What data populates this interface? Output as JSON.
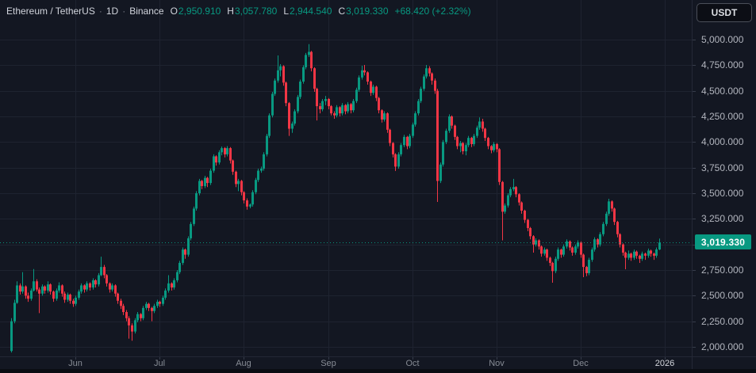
{
  "header": {
    "symbol_title": "Ethereum / TetherUS",
    "separator": "·",
    "interval": "1D",
    "exchange": "Binance",
    "ohlc": [
      {
        "label": "O",
        "value": "2,950.910"
      },
      {
        "label": "H",
        "value": "3,057.780"
      },
      {
        "label": "L",
        "value": "2,944.540"
      },
      {
        "label": "C",
        "value": "3,019.330"
      }
    ],
    "change": "+68.420 (+2.32%)"
  },
  "toolbar": {
    "currency_button": "USDT"
  },
  "colors": {
    "background": "#131722",
    "up": "#089981",
    "down": "#f23645",
    "grid": "#1e2330",
    "axis_text": "#b2b5be",
    "title_text": "#d1d4dc",
    "muted_text": "#787b86",
    "last_price_label_bg": "#089981"
  },
  "chart_data": {
    "type": "candlestick",
    "title": "Ethereum / TetherUS 1D Binance",
    "ylim": [
      2000,
      5000
    ],
    "grid": true,
    "y_ticks": [
      {
        "price": 5000,
        "label": "5,000.000"
      },
      {
        "price": 4750,
        "label": "4,750.000"
      },
      {
        "price": 4500,
        "label": "4,500.000"
      },
      {
        "price": 4250,
        "label": "4,250.000"
      },
      {
        "price": 4000,
        "label": "4,000.000"
      },
      {
        "price": 3750,
        "label": "3,750.000"
      },
      {
        "price": 3500,
        "label": "3,500.000"
      },
      {
        "price": 3250,
        "label": "3,250.000"
      },
      {
        "price": 3000,
        "label": null
      },
      {
        "price": 2750,
        "label": "2,750.000"
      },
      {
        "price": 2500,
        "label": "2,500.000"
      },
      {
        "price": 2250,
        "label": "2,250.000"
      },
      {
        "price": 2000,
        "label": "2,000.000"
      }
    ],
    "x_months": [
      {
        "label": "Jun",
        "day": 23,
        "year": false
      },
      {
        "label": "Jul",
        "day": 53,
        "year": false
      },
      {
        "label": "Aug",
        "day": 83,
        "year": false
      },
      {
        "label": "Sep",
        "day": 113,
        "year": false
      },
      {
        "label": "Oct",
        "day": 143,
        "year": false
      },
      {
        "label": "Nov",
        "day": 173,
        "year": false
      },
      {
        "label": "Dec",
        "day": 203,
        "year": false
      },
      {
        "label": "2026",
        "day": 233,
        "year": true
      }
    ],
    "last_price": {
      "value": 3019.33,
      "label": "3,019.330"
    },
    "candles": [
      [
        1960,
        2280,
        1945,
        2250
      ],
      [
        2250,
        2460,
        2230,
        2430
      ],
      [
        2430,
        2640,
        2420,
        2600
      ],
      [
        2600,
        2620,
        2510,
        2540
      ],
      [
        2540,
        2730,
        2520,
        2590
      ],
      [
        2590,
        2600,
        2470,
        2500
      ],
      [
        2500,
        2530,
        2440,
        2470
      ],
      [
        2470,
        2570,
        2450,
        2550
      ],
      [
        2550,
        2760,
        2540,
        2640
      ],
      [
        2640,
        2660,
        2540,
        2560
      ],
      [
        2560,
        2580,
        2330,
        2520
      ],
      [
        2520,
        2610,
        2500,
        2590
      ],
      [
        2590,
        2600,
        2520,
        2550
      ],
      [
        2550,
        2640,
        2530,
        2610
      ],
      [
        2610,
        2620,
        2510,
        2540
      ],
      [
        2540,
        2550,
        2440,
        2470
      ],
      [
        2470,
        2570,
        2450,
        2550
      ],
      [
        2550,
        2630,
        2530,
        2600
      ],
      [
        2600,
        2610,
        2490,
        2520
      ],
      [
        2520,
        2540,
        2430,
        2460
      ],
      [
        2460,
        2530,
        2440,
        2510
      ],
      [
        2510,
        2520,
        2420,
        2450
      ],
      [
        2450,
        2470,
        2390,
        2420
      ],
      [
        2420,
        2500,
        2400,
        2480
      ],
      [
        2480,
        2560,
        2460,
        2540
      ],
      [
        2540,
        2620,
        2520,
        2600
      ],
      [
        2600,
        2610,
        2530,
        2560
      ],
      [
        2560,
        2640,
        2540,
        2620
      ],
      [
        2620,
        2630,
        2550,
        2580
      ],
      [
        2580,
        2670,
        2560,
        2650
      ],
      [
        2650,
        2660,
        2580,
        2610
      ],
      [
        2610,
        2720,
        2590,
        2700
      ],
      [
        2700,
        2880,
        2690,
        2780
      ],
      [
        2780,
        2800,
        2670,
        2700
      ],
      [
        2700,
        2710,
        2590,
        2620
      ],
      [
        2620,
        2630,
        2530,
        2560
      ],
      [
        2560,
        2620,
        2540,
        2600
      ],
      [
        2600,
        2610,
        2490,
        2520
      ],
      [
        2520,
        2530,
        2420,
        2450
      ],
      [
        2450,
        2470,
        2370,
        2400
      ],
      [
        2400,
        2420,
        2310,
        2340
      ],
      [
        2340,
        2360,
        2250,
        2280
      ],
      [
        2280,
        2300,
        2080,
        2210
      ],
      [
        2210,
        2230,
        2060,
        2150
      ],
      [
        2150,
        2280,
        2130,
        2260
      ],
      [
        2260,
        2340,
        2240,
        2320
      ],
      [
        2320,
        2330,
        2250,
        2280
      ],
      [
        2280,
        2400,
        2260,
        2380
      ],
      [
        2380,
        2440,
        2360,
        2420
      ],
      [
        2420,
        2430,
        2350,
        2380
      ],
      [
        2380,
        2390,
        2250,
        2350
      ],
      [
        2350,
        2420,
        2330,
        2400
      ],
      [
        2400,
        2460,
        2380,
        2440
      ],
      [
        2440,
        2450,
        2390,
        2420
      ],
      [
        2420,
        2500,
        2400,
        2480
      ],
      [
        2480,
        2570,
        2460,
        2550
      ],
      [
        2550,
        2700,
        2530,
        2620
      ],
      [
        2620,
        2630,
        2550,
        2580
      ],
      [
        2580,
        2670,
        2560,
        2650
      ],
      [
        2650,
        2750,
        2630,
        2730
      ],
      [
        2730,
        2840,
        2710,
        2820
      ],
      [
        2820,
        2970,
        2800,
        2950
      ],
      [
        2950,
        2960,
        2860,
        2900
      ],
      [
        2900,
        3080,
        2880,
        3060
      ],
      [
        3060,
        3220,
        3040,
        3200
      ],
      [
        3200,
        3370,
        3180,
        3350
      ],
      [
        3350,
        3520,
        3330,
        3500
      ],
      [
        3500,
        3640,
        3480,
        3620
      ],
      [
        3620,
        3630,
        3540,
        3570
      ],
      [
        3570,
        3670,
        3550,
        3650
      ],
      [
        3650,
        3660,
        3560,
        3600
      ],
      [
        3600,
        3740,
        3580,
        3720
      ],
      [
        3720,
        3880,
        3700,
        3860
      ],
      [
        3860,
        3870,
        3770,
        3800
      ],
      [
        3800,
        3920,
        3780,
        3900
      ],
      [
        3900,
        3956,
        3870,
        3940
      ],
      [
        3940,
        3950,
        3850,
        3880
      ],
      [
        3880,
        3960,
        3860,
        3940
      ],
      [
        3940,
        3950,
        3790,
        3820
      ],
      [
        3820,
        3830,
        3680,
        3710
      ],
      [
        3710,
        3720,
        3560,
        3590
      ],
      [
        3590,
        3640,
        3520,
        3620
      ],
      [
        3620,
        3630,
        3480,
        3510
      ],
      [
        3510,
        3520,
        3400,
        3430
      ],
      [
        3430,
        3450,
        3340,
        3370
      ],
      [
        3370,
        3400,
        3353,
        3390
      ],
      [
        3390,
        3530,
        3370,
        3510
      ],
      [
        3510,
        3650,
        3490,
        3630
      ],
      [
        3630,
        3740,
        3610,
        3720
      ],
      [
        3720,
        3760,
        3700,
        3740
      ],
      [
        3740,
        3900,
        3720,
        3880
      ],
      [
        3880,
        4080,
        3860,
        4060
      ],
      [
        4060,
        4280,
        4040,
        4260
      ],
      [
        4260,
        4490,
        4240,
        4470
      ],
      [
        4470,
        4620,
        4450,
        4600
      ],
      [
        4600,
        4845,
        4580,
        4700
      ],
      [
        4700,
        4760,
        4640,
        4740
      ],
      [
        4740,
        4750,
        4550,
        4580
      ],
      [
        4580,
        4590,
        4350,
        4380
      ],
      [
        4380,
        4390,
        4060,
        4130
      ],
      [
        4130,
        4200,
        4090,
        4180
      ],
      [
        4180,
        4320,
        4160,
        4300
      ],
      [
        4300,
        4460,
        4280,
        4440
      ],
      [
        4440,
        4610,
        4420,
        4590
      ],
      [
        4590,
        4750,
        4570,
        4730
      ],
      [
        4730,
        4870,
        4710,
        4850
      ],
      [
        4850,
        4956,
        4830,
        4880
      ],
      [
        4880,
        4890,
        4690,
        4720
      ],
      [
        4720,
        4730,
        4490,
        4520
      ],
      [
        4520,
        4530,
        4210,
        4350
      ],
      [
        4350,
        4380,
        4280,
        4320
      ],
      [
        4320,
        4420,
        4300,
        4400
      ],
      [
        4400,
        4450,
        4360,
        4420
      ],
      [
        4420,
        4430,
        4320,
        4350
      ],
      [
        4350,
        4360,
        4260,
        4280
      ],
      [
        4280,
        4300,
        4227,
        4260
      ],
      [
        4260,
        4360,
        4240,
        4340
      ],
      [
        4340,
        4350,
        4250,
        4280
      ],
      [
        4280,
        4380,
        4260,
        4360
      ],
      [
        4360,
        4370,
        4270,
        4300
      ],
      [
        4300,
        4390,
        4280,
        4370
      ],
      [
        4370,
        4380,
        4280,
        4310
      ],
      [
        4310,
        4420,
        4290,
        4400
      ],
      [
        4400,
        4530,
        4380,
        4510
      ],
      [
        4510,
        4650,
        4490,
        4630
      ],
      [
        4630,
        4745,
        4610,
        4700
      ],
      [
        4700,
        4753,
        4650,
        4680
      ],
      [
        4680,
        4690,
        4560,
        4590
      ],
      [
        4590,
        4600,
        4450,
        4480
      ],
      [
        4480,
        4560,
        4460,
        4540
      ],
      [
        4540,
        4550,
        4400,
        4430
      ],
      [
        4430,
        4440,
        4280,
        4310
      ],
      [
        4310,
        4320,
        4190,
        4220
      ],
      [
        4220,
        4300,
        4200,
        4280
      ],
      [
        4280,
        4290,
        4090,
        4120
      ],
      [
        4120,
        4130,
        3960,
        3990
      ],
      [
        3990,
        4000,
        3850,
        3880
      ],
      [
        3880,
        3890,
        3717,
        3760
      ],
      [
        3760,
        3900,
        3740,
        3880
      ],
      [
        3880,
        3990,
        3860,
        3970
      ],
      [
        3970,
        4070,
        3950,
        4050
      ],
      [
        4050,
        4060,
        3930,
        3960
      ],
      [
        3960,
        4080,
        3940,
        4060
      ],
      [
        4060,
        4190,
        4040,
        4170
      ],
      [
        4170,
        4300,
        4150,
        4280
      ],
      [
        4280,
        4420,
        4260,
        4400
      ],
      [
        4400,
        4540,
        4380,
        4520
      ],
      [
        4520,
        4660,
        4500,
        4640
      ],
      [
        4640,
        4753,
        4620,
        4720
      ],
      [
        4720,
        4740,
        4640,
        4670
      ],
      [
        4670,
        4680,
        4560,
        4600
      ],
      [
        4600,
        4620,
        4470,
        4500
      ],
      [
        4500,
        4520,
        3415,
        3620
      ],
      [
        3620,
        3800,
        3600,
        3780
      ],
      [
        3780,
        4020,
        3760,
        4000
      ],
      [
        4000,
        4130,
        3980,
        4110
      ],
      [
        4110,
        4270,
        4090,
        4250
      ],
      [
        4250,
        4260,
        4130,
        4160
      ],
      [
        4160,
        4170,
        4020,
        4050
      ],
      [
        4050,
        4060,
        3930,
        3960
      ],
      [
        3960,
        4010,
        3900,
        3990
      ],
      [
        3990,
        4000,
        3880,
        3910
      ],
      [
        3910,
        3990,
        3870,
        3970
      ],
      [
        3970,
        4060,
        3950,
        4040
      ],
      [
        4040,
        4050,
        3950,
        3980
      ],
      [
        3980,
        4080,
        3960,
        4060
      ],
      [
        4060,
        4160,
        4040,
        4140
      ],
      [
        4140,
        4240,
        4120,
        4200
      ],
      [
        4200,
        4227,
        4100,
        4130
      ],
      [
        4130,
        4140,
        4010,
        4040
      ],
      [
        4040,
        4050,
        3930,
        3960
      ],
      [
        3960,
        3970,
        3890,
        3920
      ],
      [
        3920,
        4000,
        3900,
        3980
      ],
      [
        3980,
        3990,
        3900,
        3930
      ],
      [
        3930,
        3940,
        3580,
        3610
      ],
      [
        3610,
        3620,
        3040,
        3320
      ],
      [
        3320,
        3400,
        3300,
        3380
      ],
      [
        3380,
        3500,
        3360,
        3480
      ],
      [
        3480,
        3560,
        3460,
        3540
      ],
      [
        3540,
        3640,
        3520,
        3560
      ],
      [
        3560,
        3570,
        3460,
        3490
      ],
      [
        3490,
        3500,
        3380,
        3410
      ],
      [
        3410,
        3420,
        3300,
        3330
      ],
      [
        3330,
        3340,
        3210,
        3240
      ],
      [
        3240,
        3250,
        3130,
        3160
      ],
      [
        3160,
        3170,
        3050,
        3080
      ],
      [
        3080,
        3090,
        2920,
        3000
      ],
      [
        3000,
        3060,
        2980,
        3040
      ],
      [
        3040,
        3050,
        2950,
        2980
      ],
      [
        2980,
        2990,
        2880,
        2910
      ],
      [
        2910,
        2970,
        2890,
        2950
      ],
      [
        2950,
        2960,
        2840,
        2870
      ],
      [
        2870,
        2880,
        2790,
        2820
      ],
      [
        2820,
        2830,
        2626,
        2740
      ],
      [
        2740,
        2880,
        2720,
        2860
      ],
      [
        2860,
        2970,
        2840,
        2950
      ],
      [
        2950,
        2960,
        2870,
        2900
      ],
      [
        2900,
        3000,
        2880,
        2980
      ],
      [
        2980,
        3050,
        2960,
        3030
      ],
      [
        3030,
        3040,
        2940,
        2970
      ],
      [
        2970,
        2980,
        2890,
        2920
      ],
      [
        2920,
        3000,
        2900,
        2980
      ],
      [
        2980,
        3040,
        2960,
        3020
      ],
      [
        3020,
        3030,
        2870,
        2900
      ],
      [
        2900,
        2910,
        2680,
        2780
      ],
      [
        2780,
        2790,
        2690,
        2720
      ],
      [
        2720,
        2870,
        2700,
        2850
      ],
      [
        2850,
        2970,
        2830,
        2950
      ],
      [
        2950,
        3070,
        2930,
        3050
      ],
      [
        3050,
        3060,
        2970,
        3000
      ],
      [
        3000,
        3120,
        2980,
        3100
      ],
      [
        3100,
        3220,
        3080,
        3200
      ],
      [
        3200,
        3320,
        3180,
        3300
      ],
      [
        3300,
        3446,
        3280,
        3420
      ],
      [
        3420,
        3430,
        3320,
        3350
      ],
      [
        3350,
        3360,
        3190,
        3220
      ],
      [
        3220,
        3230,
        3070,
        3100
      ],
      [
        3100,
        3110,
        2970,
        3000
      ],
      [
        3000,
        3010,
        2890,
        2920
      ],
      [
        2920,
        2930,
        2758,
        2870
      ],
      [
        2870,
        2940,
        2850,
        2910
      ],
      [
        2910,
        2920,
        2840,
        2870
      ],
      [
        2870,
        2950,
        2850,
        2930
      ],
      [
        2930,
        2940,
        2860,
        2890
      ],
      [
        2890,
        2900,
        2820,
        2860
      ],
      [
        2860,
        2930,
        2840,
        2910
      ],
      [
        2910,
        2920,
        2850,
        2890
      ],
      [
        2890,
        2960,
        2870,
        2940
      ],
      [
        2940,
        2950,
        2880,
        2910
      ],
      [
        2910,
        2920,
        2850,
        2890
      ],
      [
        2890,
        2970,
        2870,
        2951
      ],
      [
        2950.91,
        3057.78,
        2944.54,
        3019.33
      ]
    ]
  }
}
